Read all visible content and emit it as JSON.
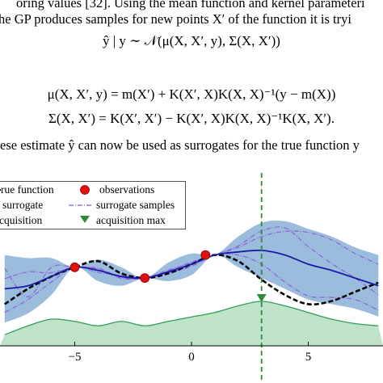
{
  "text": {
    "line1": "oring values [32]. Using the mean function and kernel parameteri",
    "line2": "he GP produces samples for new points X′ of the function it is tryi",
    "eq1": "ŷ | y ∼ 𝒩(μ(X, X′, y), Σ(X, X′))",
    "eq2": "μ(X, X′, y) = m(X′) + K(X′, X)K(X, X)⁻¹(y − m(X))",
    "eq3": "Σ(X, X′) = K(X′, X′) − K(X′, X)K(X, X)⁻¹K(X, X′).",
    "line3": "ese estimate ŷ can now be used as surrogates for the true function y"
  },
  "legend": {
    "true_function": "rue function",
    "observations": "observations",
    "surrogate": "surrogate",
    "surrogate_samples": "surrogate samples",
    "acquisition": "cquisition",
    "acquisition_max": "acquisition max"
  },
  "colors": {
    "true_function": "#000000",
    "surrogate": "#1a1aa8",
    "band": "#7aa6d0",
    "samples": "#8a5bd6",
    "observation": "#e01010",
    "acquisition_fill": "#bfe3c9",
    "acquisition_line": "#2e9d55",
    "acq_max": "#2e8b3a"
  },
  "chart_data": {
    "type": "line",
    "xlim": [
      -8.2,
      8.2
    ],
    "x_ticks": [
      -5,
      0,
      5
    ],
    "x_tick_labels": [
      "−5",
      "0",
      "5"
    ],
    "observations": [
      {
        "x": -5.0,
        "y": 0.9
      },
      {
        "x": -2.0,
        "y": 0.55
      },
      {
        "x": 0.6,
        "y": 1.3
      }
    ],
    "acquisition_max_x": 3.0,
    "series": [
      {
        "name": "true function",
        "x": [
          -8,
          -7,
          -6,
          -5,
          -4,
          -3,
          -2,
          -1,
          0,
          1,
          2,
          3,
          4,
          5,
          6,
          7,
          8
        ],
        "y": [
          -0.3,
          0.2,
          0.6,
          0.9,
          1.1,
          0.7,
          0.55,
          0.7,
          1.0,
          1.3,
          1.1,
          0.5,
          0.0,
          -0.3,
          -0.2,
          0.1,
          0.4
        ]
      },
      {
        "name": "surrogate",
        "x": [
          -8,
          -7,
          -6,
          -5,
          -4,
          -3,
          -2,
          -1,
          0,
          1,
          2,
          3,
          4,
          5,
          6,
          7,
          8
        ],
        "y": [
          0.2,
          0.3,
          0.6,
          0.9,
          0.8,
          0.6,
          0.55,
          0.75,
          1.0,
          1.3,
          1.4,
          1.45,
          1.3,
          1.0,
          0.8,
          0.55,
          0.3
        ]
      }
    ],
    "uncertainty_half_width": [
      1.1,
      0.9,
      0.6,
      0.0,
      0.35,
      0.3,
      0.0,
      0.3,
      0.35,
      0.0,
      0.5,
      0.9,
      1.1,
      1.15,
      1.1,
      1.0,
      1.0
    ],
    "acquisition": {
      "x": [
        -8,
        -7,
        -6,
        -5,
        -4,
        -3,
        -2,
        -1,
        0,
        1,
        2,
        3,
        4,
        5,
        6,
        7,
        8
      ],
      "y": [
        0.25,
        0.45,
        0.6,
        0.55,
        0.45,
        0.55,
        0.45,
        0.55,
        0.65,
        0.75,
        0.9,
        1.0,
        0.9,
        0.75,
        0.6,
        0.5,
        0.45
      ]
    }
  }
}
